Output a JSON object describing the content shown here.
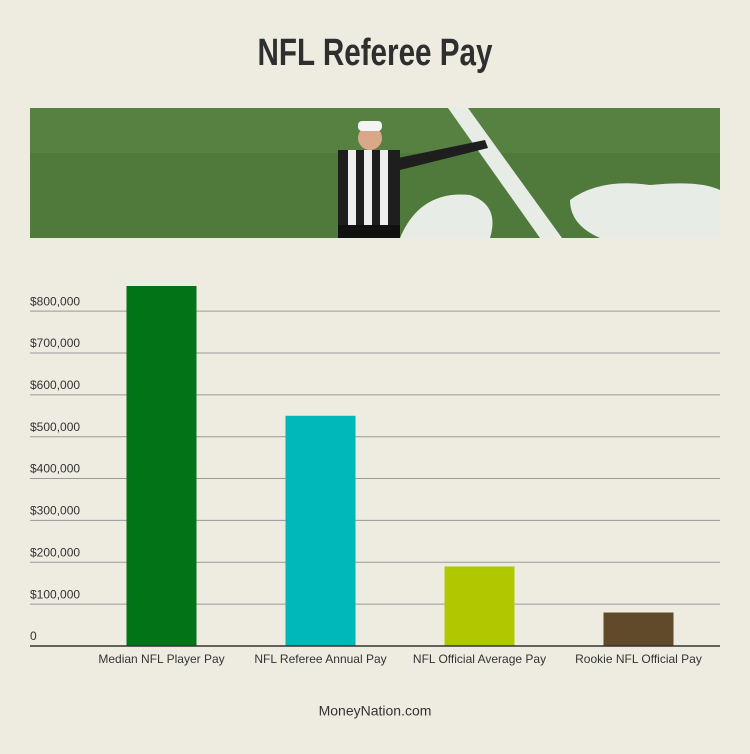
{
  "chart_data": {
    "type": "bar",
    "title": "NFL Referee Pay",
    "source": "MoneyNation.com",
    "categories": [
      "Median NFL Player Pay",
      "NFL Referee Annual Pay",
      "NFL Official Average Pay",
      "Rookie NFL Official Pay"
    ],
    "values": [
      860000,
      550000,
      190000,
      80000
    ],
    "colors": [
      "#007417",
      "#00b8b8",
      "#b0c800",
      "#614a2a"
    ],
    "ylim": [
      0,
      860000
    ],
    "yticks": [
      0,
      {
        "value": 100000,
        "label": "$100,000"
      },
      {
        "value": 200000,
        "label": "$200,000"
      },
      {
        "value": 300000,
        "label": "$300,000"
      },
      {
        "value": 400000,
        "label": "$400,000"
      },
      {
        "value": 500000,
        "label": "$500,000"
      },
      {
        "value": 600000,
        "label": "$600,000"
      },
      {
        "value": 700000,
        "label": "$700,000"
      },
      {
        "value": 800000,
        "label": "$800,000"
      }
    ],
    "grid": true
  }
}
